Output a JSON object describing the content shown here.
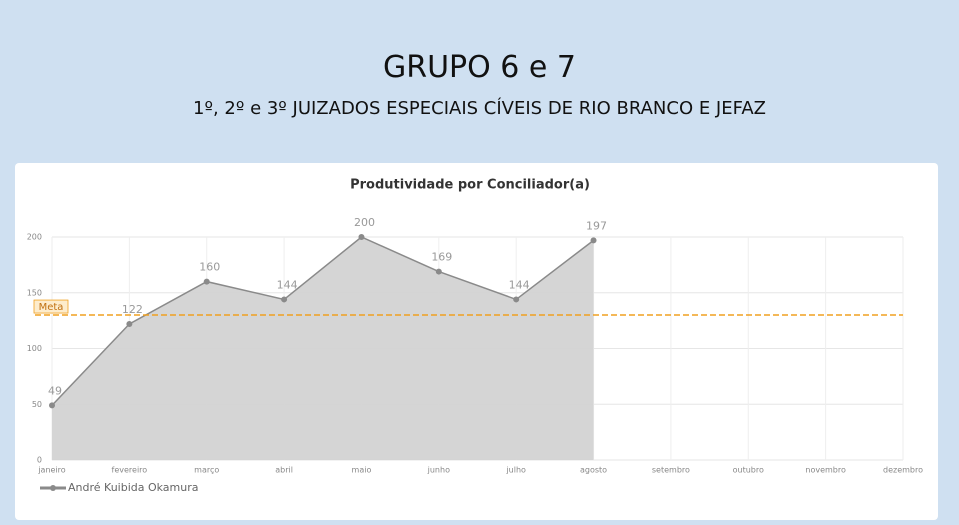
{
  "header": {
    "title": "GRUPO 6 e 7",
    "subtitle": "1º, 2º e 3º JUIZADOS ESPECIAIS CÍVEIS DE RIO BRANCO E JEFAZ"
  },
  "chart_data": {
    "type": "area",
    "title": "Produtividade por Conciliador(a)",
    "categories": [
      "janeiro",
      "fevereiro",
      "março",
      "abril",
      "maio",
      "junho",
      "julho",
      "agosto",
      "setembro",
      "outubro",
      "novembro",
      "dezembro"
    ],
    "series": [
      {
        "name": "André Kuibida Okamura",
        "color": "#8a8a8a",
        "fill": "#d3d3d3",
        "values": [
          49,
          122,
          160,
          144,
          200,
          169,
          144,
          197,
          null,
          null,
          null,
          null
        ]
      }
    ],
    "ylim": [
      0,
      200
    ],
    "yticks": [
      0,
      50,
      100,
      150,
      200
    ],
    "grid": true,
    "target": {
      "label": "Meta",
      "value": 130,
      "color": "#f0a020"
    },
    "legend": "bottom-left"
  }
}
